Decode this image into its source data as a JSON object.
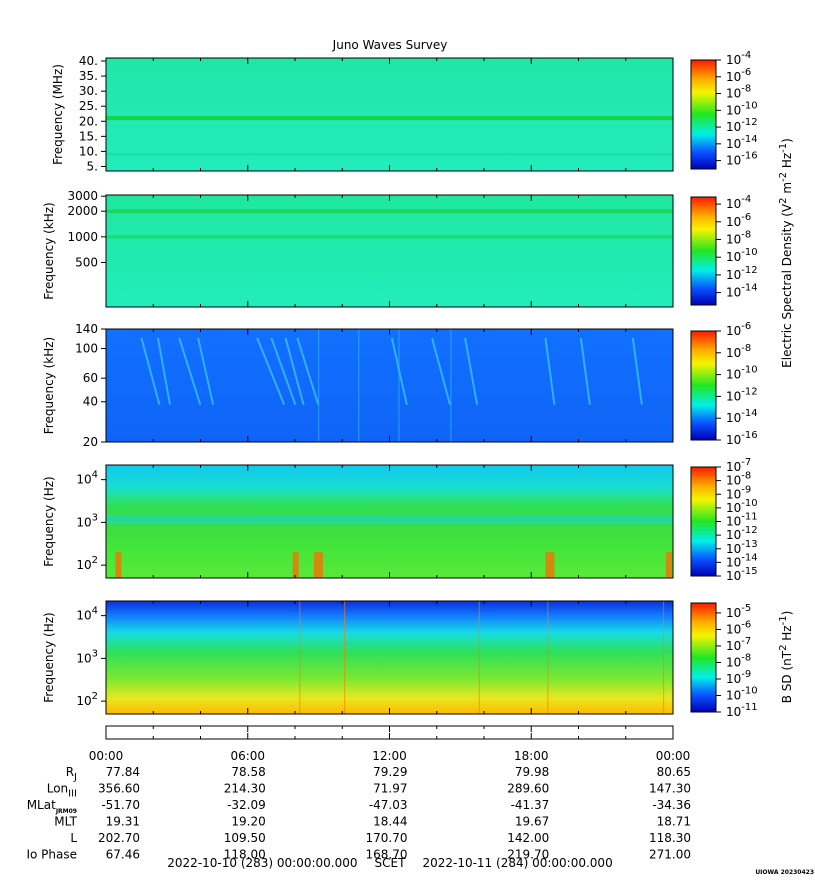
{
  "chart_data": {
    "type": "heatmap",
    "title": "Juno Waves Survey",
    "credit": "UIOWA 20230423",
    "panels": [
      {
        "id": "p1",
        "ylabel": "Frequency (MHz)",
        "yscale": "linear",
        "ylim": [
          3.5,
          41
        ],
        "yticks": [
          {
            "v": 40,
            "label": "40."
          },
          {
            "v": 35,
            "label": "35."
          },
          {
            "v": 30,
            "label": "30."
          },
          {
            "v": 25,
            "label": "25."
          },
          {
            "v": 20,
            "label": "20."
          },
          {
            "v": 15,
            "label": "15."
          },
          {
            "v": 10,
            "label": "10."
          },
          {
            "v": 5,
            "label": "5."
          }
        ],
        "colorbar": {
          "exponents": [
            "-4",
            "-6",
            "-8",
            "-10",
            "-12",
            "-14",
            "-16"
          ],
          "range": [
            -4,
            -17
          ]
        }
      },
      {
        "id": "p2",
        "ylabel": "Frequency (kHz)",
        "yscale": "log",
        "ylim": [
          150,
          3100
        ],
        "yticks": [
          {
            "v": 3000,
            "label": "3000"
          },
          {
            "v": 2000,
            "label": "2000"
          },
          {
            "v": 1000,
            "label": "1000"
          },
          {
            "v": 500,
            "label": "500"
          }
        ],
        "colorbar": {
          "exponents": [
            "-4",
            "-6",
            "-8",
            "-10",
            "-12",
            "-14"
          ],
          "range": [
            -3.2,
            -15.4
          ]
        }
      },
      {
        "id": "p3",
        "ylabel": "Frequency (kHz)",
        "yscale": "log",
        "ylim": [
          20,
          140
        ],
        "yticks": [
          {
            "v": 140,
            "label": "140"
          },
          {
            "v": 100,
            "label": "100"
          },
          {
            "v": 60,
            "label": "60"
          },
          {
            "v": 40,
            "label": "40"
          },
          {
            "v": 20,
            "label": "20"
          }
        ],
        "colorbar": {
          "exponents": [
            "-6",
            "-8",
            "-10",
            "-12",
            "-14",
            "-16"
          ],
          "range": [
            -6,
            -16
          ]
        }
      },
      {
        "id": "p4",
        "ylabel": "Frequency (Hz)",
        "yscale": "log",
        "ylim": [
          50,
          22000
        ],
        "yticks": [
          {
            "v": 10000,
            "base": "10",
            "exp": "4"
          },
          {
            "v": 1000,
            "base": "10",
            "exp": "3"
          },
          {
            "v": 100,
            "base": "10",
            "exp": "2"
          }
        ],
        "colorbar": {
          "exponents": [
            "-7",
            "-8",
            "-9",
            "-10",
            "-11",
            "-12",
            "-13",
            "-14",
            "-15"
          ],
          "range": [
            -7,
            -15
          ]
        }
      },
      {
        "id": "p5",
        "ylabel": "Frequency (Hz)",
        "yscale": "log",
        "ylim": [
          50,
          22000
        ],
        "yticks": [
          {
            "v": 10000,
            "base": "10",
            "exp": "4"
          },
          {
            "v": 1000,
            "base": "10",
            "exp": "3"
          },
          {
            "v": 100,
            "base": "10",
            "exp": "2"
          }
        ],
        "colorbar": {
          "exponents": [
            "-5",
            "-6",
            "-7",
            "-8",
            "-9",
            "-10",
            "-11"
          ],
          "range": [
            -4.4,
            -11
          ]
        }
      }
    ],
    "colorbar_labels": [
      {
        "text": "Electric Spectral Density (V",
        "sup1": "2",
        "mid": " m",
        "sup2": "-2",
        "mid2": " Hz",
        "sup3": "-1",
        "end": ")"
      },
      {
        "text": "B SD (nT",
        "sup1": "2",
        "mid": " Hz",
        "sup2": "-1",
        "end": ")"
      }
    ],
    "xaxis": {
      "start": "2022-10-10 (283) 00:00:00.000",
      "label": "SCET",
      "end": "2022-10-11 (284) 00:00:00.000",
      "xlim_hours": [
        0,
        24
      ],
      "ticks": [
        "00:00",
        "06:00",
        "12:00",
        "18:00",
        "00:00"
      ]
    },
    "ephemeris": [
      {
        "name": "R",
        "sub": "J",
        "values": [
          "77.84",
          "78.58",
          "79.29",
          "79.98",
          "80.65"
        ]
      },
      {
        "name": "Lon",
        "sub": "III",
        "values": [
          "356.60",
          "214.30",
          "71.97",
          "289.60",
          "147.30"
        ]
      },
      {
        "name": "MLat",
        "sub": "JRM09",
        "values": [
          "-51.70",
          "-32.09",
          "-47.03",
          "-41.37",
          "-34.36"
        ]
      },
      {
        "name": "MLT",
        "sub": "",
        "values": [
          "19.31",
          "19.20",
          "18.44",
          "19.67",
          "18.71"
        ]
      },
      {
        "name": "L",
        "sub": "",
        "values": [
          "202.70",
          "109.50",
          "170.70",
          "142.00",
          "118.30"
        ]
      },
      {
        "name": "Io Phase",
        "sub": "",
        "values": [
          "67.46",
          "118.00",
          "168.70",
          "219.70",
          "271.00"
        ]
      }
    ]
  }
}
